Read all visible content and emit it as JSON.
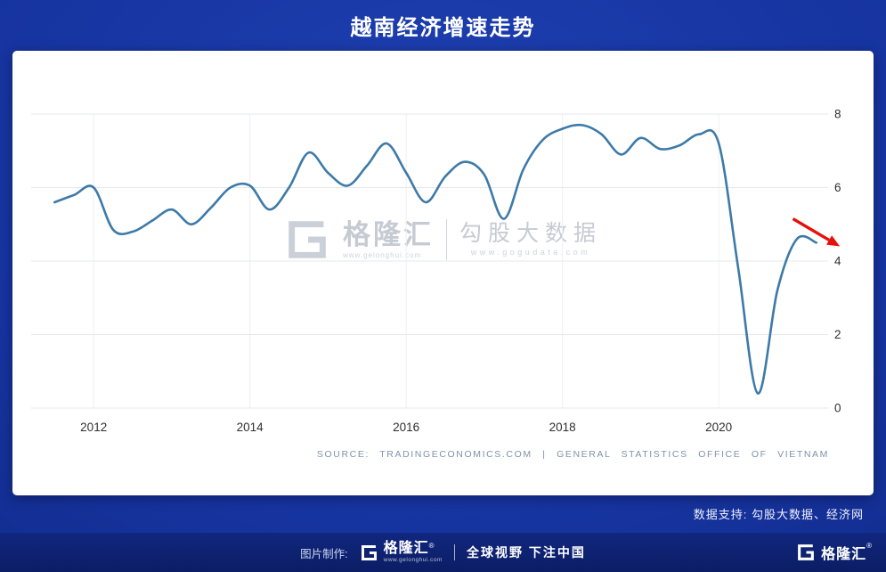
{
  "header": {
    "title": "越南经济增速走势"
  },
  "chart_data": {
    "type": "line",
    "title": "越南经济增速走势",
    "series": [
      {
        "x": [
          2011.5,
          2011.75,
          2012.0,
          2012.25,
          2012.5,
          2012.75,
          2013.0,
          2013.25,
          2013.5,
          2013.75,
          2014.0,
          2014.25,
          2014.5,
          2014.75,
          2015.0,
          2015.25,
          2015.5,
          2015.75,
          2016.0,
          2016.25,
          2016.5,
          2016.75,
          2017.0,
          2017.25,
          2017.5,
          2017.75,
          2018.0,
          2018.25,
          2018.5,
          2018.75,
          2019.0,
          2019.25,
          2019.5,
          2019.75,
          2020.0,
          2020.25,
          2020.5,
          2020.75,
          2021.0,
          2021.25
        ],
        "values": [
          5.6,
          5.8,
          6.0,
          4.85,
          4.8,
          5.1,
          5.4,
          5.0,
          5.45,
          6.0,
          6.05,
          5.4,
          6.0,
          6.95,
          6.4,
          6.05,
          6.6,
          7.2,
          6.4,
          5.6,
          6.3,
          6.7,
          6.35,
          5.15,
          6.5,
          7.3,
          7.6,
          7.7,
          7.45,
          6.9,
          7.35,
          7.05,
          7.15,
          7.45,
          7.2,
          3.8,
          0.4,
          3.2,
          4.6,
          4.5
        ]
      }
    ],
    "x_ticks": [
      "2012",
      "2014",
      "2016",
      "2018",
      "2020"
    ],
    "x_tick_years": [
      2012,
      2014,
      2016,
      2018,
      2020
    ],
    "y_ticks": [
      8,
      6,
      4,
      2,
      0
    ],
    "xlim": [
      2011.2,
      2021.4
    ],
    "ylim": [
      0,
      8
    ],
    "grid": true,
    "legend_position": "none",
    "line_color": "#3d7aa8",
    "grid_color": "#e6e8ec",
    "axis_label_color": "#2f2f2f",
    "annotation_arrow": {
      "from": {
        "x": 2020.95,
        "y": 5.15
      },
      "to": {
        "x": 2021.55,
        "y": 4.4
      },
      "color": "#e6100b"
    }
  },
  "watermark": {
    "brand": "格隆汇",
    "brand_url": "www.gelonghui.com",
    "product": "勾股大数据",
    "product_url": "www.gogudata.com"
  },
  "chart_footer": {
    "source": "SOURCE: TRADINGECONOMICS.COM | GENERAL STATISTICS OFFICE OF VIETNAM"
  },
  "support": {
    "label": "数据支持: 勾股大数据、经济网"
  },
  "footer": {
    "made_by": "图片制作:",
    "brand": "格隆汇",
    "reg": "®",
    "brand_url": "www.gelonghui.com",
    "slogan": "全球视野 下注中国"
  }
}
